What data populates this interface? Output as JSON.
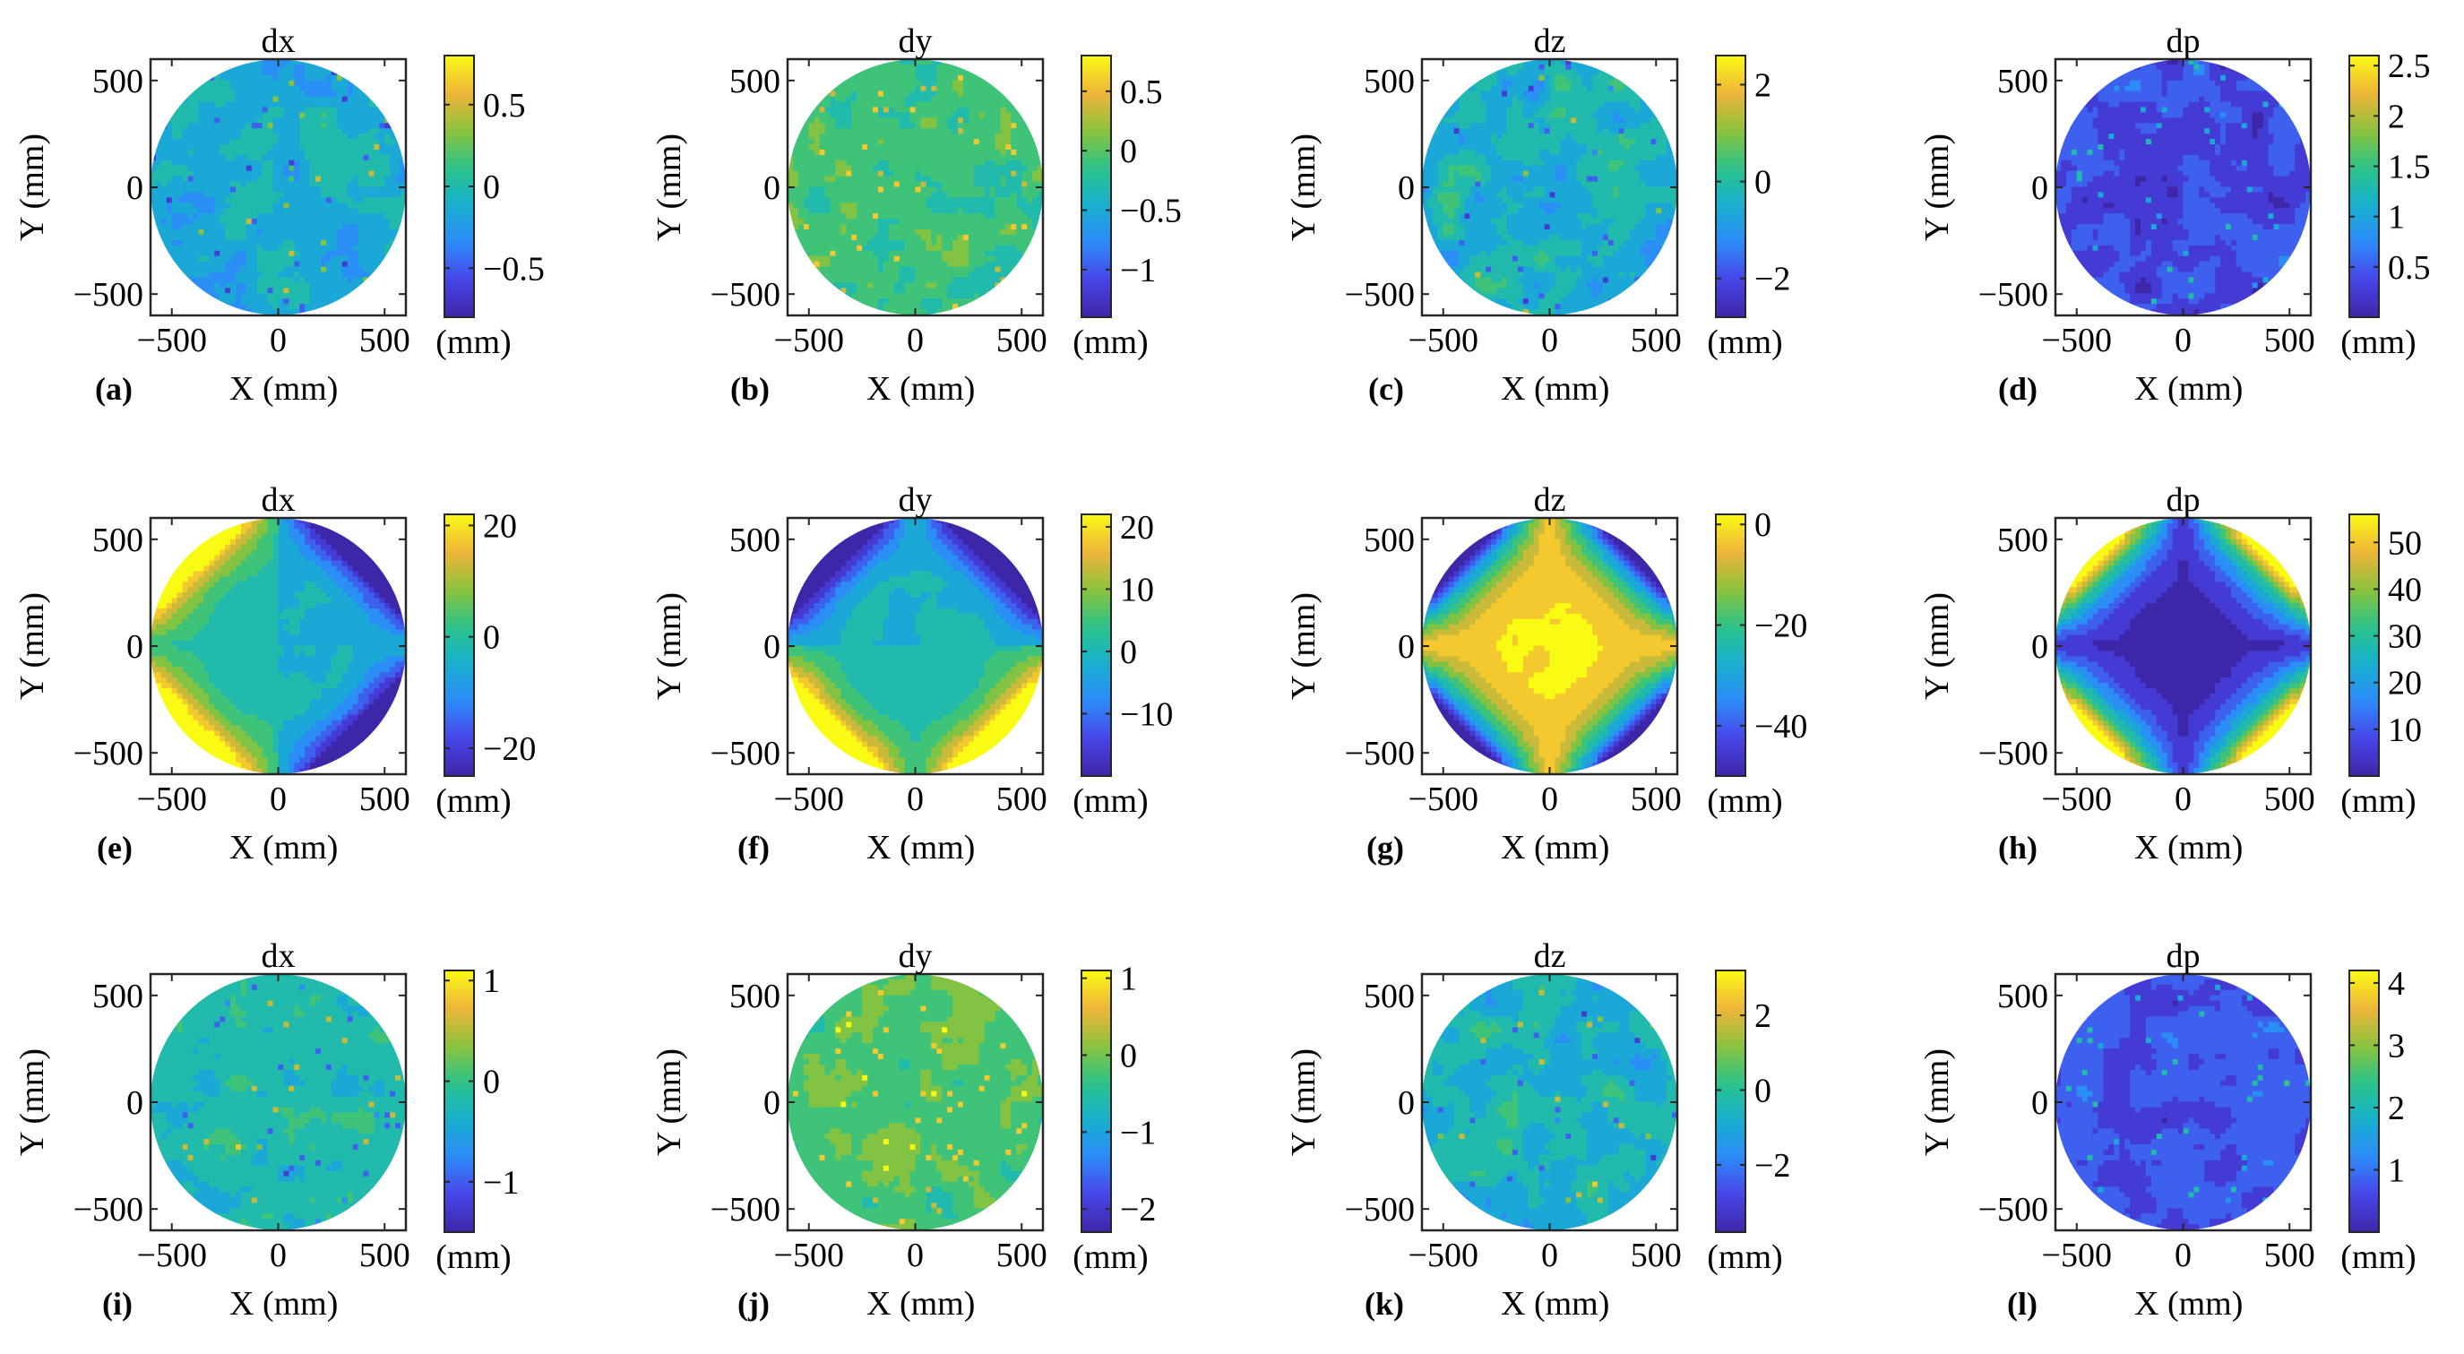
{
  "figure": {
    "x_label": "X (mm)",
    "y_label": "Y (mm)",
    "colorbar_unit": "(mm)",
    "colormap": [
      "#3e26a8",
      "#4744e8",
      "#2d8af9",
      "#17b0cf",
      "#2bc389",
      "#8dc33b",
      "#f1b43a",
      "#f9fb15"
    ]
  },
  "chart_data": [
    {
      "panel": "(a)",
      "type": "heatmap",
      "title": "dx",
      "xlabel": "X (mm)",
      "ylabel": "Y (mm)",
      "xlim": [
        -600,
        600
      ],
      "ylim": [
        -600,
        600
      ],
      "x_ticks": [
        "−500",
        "0",
        "500"
      ],
      "y_ticks": [
        "500",
        "0",
        "−500"
      ],
      "colorbar": {
        "range": [
          -0.8,
          0.8
        ],
        "ticks": [
          "0.5",
          "0",
          "−0.5"
        ],
        "tick_values": [
          0.5,
          0,
          -0.5
        ],
        "unit": "(mm)"
      },
      "pattern": "noisy",
      "base": 0.42,
      "noise": 0.16
    },
    {
      "panel": "(b)",
      "type": "heatmap",
      "title": "dy",
      "xlabel": "X (mm)",
      "ylabel": "Y (mm)",
      "xlim": [
        -600,
        600
      ],
      "ylim": [
        -600,
        600
      ],
      "x_ticks": [
        "−500",
        "0",
        "500"
      ],
      "y_ticks": [
        "500",
        "0",
        "−500"
      ],
      "colorbar": {
        "range": [
          -1.4,
          0.8
        ],
        "ticks": [
          "0.5",
          "0",
          "−0.5",
          "−1"
        ],
        "tick_values": [
          0.5,
          0,
          -0.5,
          -1
        ],
        "unit": "(mm)"
      },
      "pattern": "noisy",
      "base": 0.58,
      "noise": 0.14
    },
    {
      "panel": "(c)",
      "type": "heatmap",
      "title": "dz",
      "xlabel": "X (mm)",
      "ylabel": "Y (mm)",
      "xlim": [
        -600,
        600
      ],
      "ylim": [
        -600,
        600
      ],
      "x_ticks": [
        "−500",
        "0",
        "500"
      ],
      "y_ticks": [
        "500",
        "0",
        "−500"
      ],
      "colorbar": {
        "range": [
          -2.8,
          2.6
        ],
        "ticks": [
          "2",
          "0",
          "−2"
        ],
        "tick_values": [
          2,
          0,
          -2
        ],
        "unit": "(mm)"
      },
      "pattern": "noisy",
      "base": 0.45,
      "noise": 0.17
    },
    {
      "panel": "(d)",
      "type": "heatmap",
      "title": "dp",
      "xlabel": "X (mm)",
      "ylabel": "Y (mm)",
      "xlim": [
        -600,
        600
      ],
      "ylim": [
        -600,
        600
      ],
      "x_ticks": [
        "−500",
        "0",
        "500"
      ],
      "y_ticks": [
        "500",
        "0",
        "−500"
      ],
      "colorbar": {
        "range": [
          0,
          2.6
        ],
        "ticks": [
          "2.5",
          "2",
          "1.5",
          "1",
          "0.5"
        ],
        "tick_values": [
          2.5,
          2,
          1.5,
          1,
          0.5
        ],
        "unit": "(mm)"
      },
      "pattern": "noisy",
      "base": 0.14,
      "noise": 0.16
    },
    {
      "panel": "(e)",
      "type": "heatmap",
      "title": "dx",
      "xlabel": "X (mm)",
      "ylabel": "Y (mm)",
      "xlim": [
        -600,
        600
      ],
      "ylim": [
        -600,
        600
      ],
      "x_ticks": [
        "−500",
        "0",
        "500"
      ],
      "y_ticks": [
        "500",
        "0",
        "−500"
      ],
      "colorbar": {
        "range": [
          -25,
          22
        ],
        "ticks": [
          "20",
          "0",
          "−20"
        ],
        "tick_values": [
          20,
          0,
          -20
        ],
        "unit": "(mm)"
      },
      "pattern": "dx",
      "base": 0.5,
      "noise": 0.03
    },
    {
      "panel": "(f)",
      "type": "heatmap",
      "title": "dy",
      "xlabel": "X (mm)",
      "ylabel": "Y (mm)",
      "xlim": [
        -600,
        600
      ],
      "ylim": [
        -600,
        600
      ],
      "x_ticks": [
        "−500",
        "0",
        "500"
      ],
      "y_ticks": [
        "500",
        "0",
        "−500"
      ],
      "colorbar": {
        "range": [
          -20,
          22
        ],
        "ticks": [
          "20",
          "10",
          "0",
          "−10"
        ],
        "tick_values": [
          20,
          10,
          0,
          -10
        ],
        "unit": "(mm)"
      },
      "pattern": "dy",
      "base": 0.5,
      "noise": 0.03
    },
    {
      "panel": "(g)",
      "type": "heatmap",
      "title": "dz",
      "xlabel": "X (mm)",
      "ylabel": "Y (mm)",
      "xlim": [
        -600,
        600
      ],
      "ylim": [
        -600,
        600
      ],
      "x_ticks": [
        "−500",
        "0",
        "500"
      ],
      "y_ticks": [
        "500",
        "0",
        "−500"
      ],
      "colorbar": {
        "range": [
          -50,
          2
        ],
        "ticks": [
          "0",
          "−20",
          "−40"
        ],
        "tick_values": [
          0,
          -20,
          -40
        ],
        "unit": "(mm)"
      },
      "pattern": "dz",
      "base": 0.95,
      "noise": 0.02
    },
    {
      "panel": "(h)",
      "type": "heatmap",
      "title": "dp",
      "xlabel": "X (mm)",
      "ylabel": "Y (mm)",
      "xlim": [
        -600,
        600
      ],
      "ylim": [
        -600,
        600
      ],
      "x_ticks": [
        "−500",
        "0",
        "500"
      ],
      "y_ticks": [
        "500",
        "0",
        "−500"
      ],
      "colorbar": {
        "range": [
          0,
          56
        ],
        "ticks": [
          "50",
          "40",
          "30",
          "20",
          "10"
        ],
        "tick_values": [
          50,
          40,
          30,
          20,
          10
        ],
        "unit": "(mm)"
      },
      "pattern": "dp",
      "base": 0.03,
      "noise": 0.02
    },
    {
      "panel": "(i)",
      "type": "heatmap",
      "title": "dx",
      "xlabel": "X (mm)",
      "ylabel": "Y (mm)",
      "xlim": [
        -600,
        600
      ],
      "ylim": [
        -600,
        600
      ],
      "x_ticks": [
        "−500",
        "0",
        "500"
      ],
      "y_ticks": [
        "500",
        "0",
        "−500"
      ],
      "colorbar": {
        "range": [
          -1.5,
          1.1
        ],
        "ticks": [
          "1",
          "0",
          "−1"
        ],
        "tick_values": [
          1,
          0,
          -1
        ],
        "unit": "(mm)"
      },
      "pattern": "noisy",
      "base": 0.5,
      "noise": 0.12
    },
    {
      "panel": "(j)",
      "type": "heatmap",
      "title": "dy",
      "xlabel": "X (mm)",
      "ylabel": "Y (mm)",
      "xlim": [
        -600,
        600
      ],
      "ylim": [
        -600,
        600
      ],
      "x_ticks": [
        "−500",
        "0",
        "500"
      ],
      "y_ticks": [
        "500",
        "0",
        "−500"
      ],
      "colorbar": {
        "range": [
          -2.3,
          1.1
        ],
        "ticks": [
          "1",
          "0",
          "−1",
          "−2"
        ],
        "tick_values": [
          1,
          0,
          -1,
          -2
        ],
        "unit": "(mm)"
      },
      "pattern": "noisy",
      "base": 0.62,
      "noise": 0.13
    },
    {
      "panel": "(k)",
      "type": "heatmap",
      "title": "dz",
      "xlabel": "X (mm)",
      "ylabel": "Y (mm)",
      "xlim": [
        -600,
        600
      ],
      "ylim": [
        -600,
        600
      ],
      "x_ticks": [
        "−500",
        "0",
        "500"
      ],
      "y_ticks": [
        "500",
        "0",
        "−500"
      ],
      "colorbar": {
        "range": [
          -3.8,
          3.2
        ],
        "ticks": [
          "2",
          "0",
          "−2"
        ],
        "tick_values": [
          2,
          0,
          -2
        ],
        "unit": "(mm)"
      },
      "pattern": "noisy",
      "base": 0.45,
      "noise": 0.16
    },
    {
      "panel": "(l)",
      "type": "heatmap",
      "title": "dp",
      "xlabel": "X (mm)",
      "ylabel": "Y (mm)",
      "xlim": [
        -600,
        600
      ],
      "ylim": [
        -600,
        600
      ],
      "x_ticks": [
        "−500",
        "0",
        "500"
      ],
      "y_ticks": [
        "500",
        "0",
        "−500"
      ],
      "colorbar": {
        "range": [
          0,
          4.2
        ],
        "ticks": [
          "4",
          "3",
          "2",
          "1"
        ],
        "tick_values": [
          4,
          3,
          2,
          1
        ],
        "unit": "(mm)"
      },
      "pattern": "noisy",
      "base": 0.16,
      "noise": 0.13
    }
  ]
}
